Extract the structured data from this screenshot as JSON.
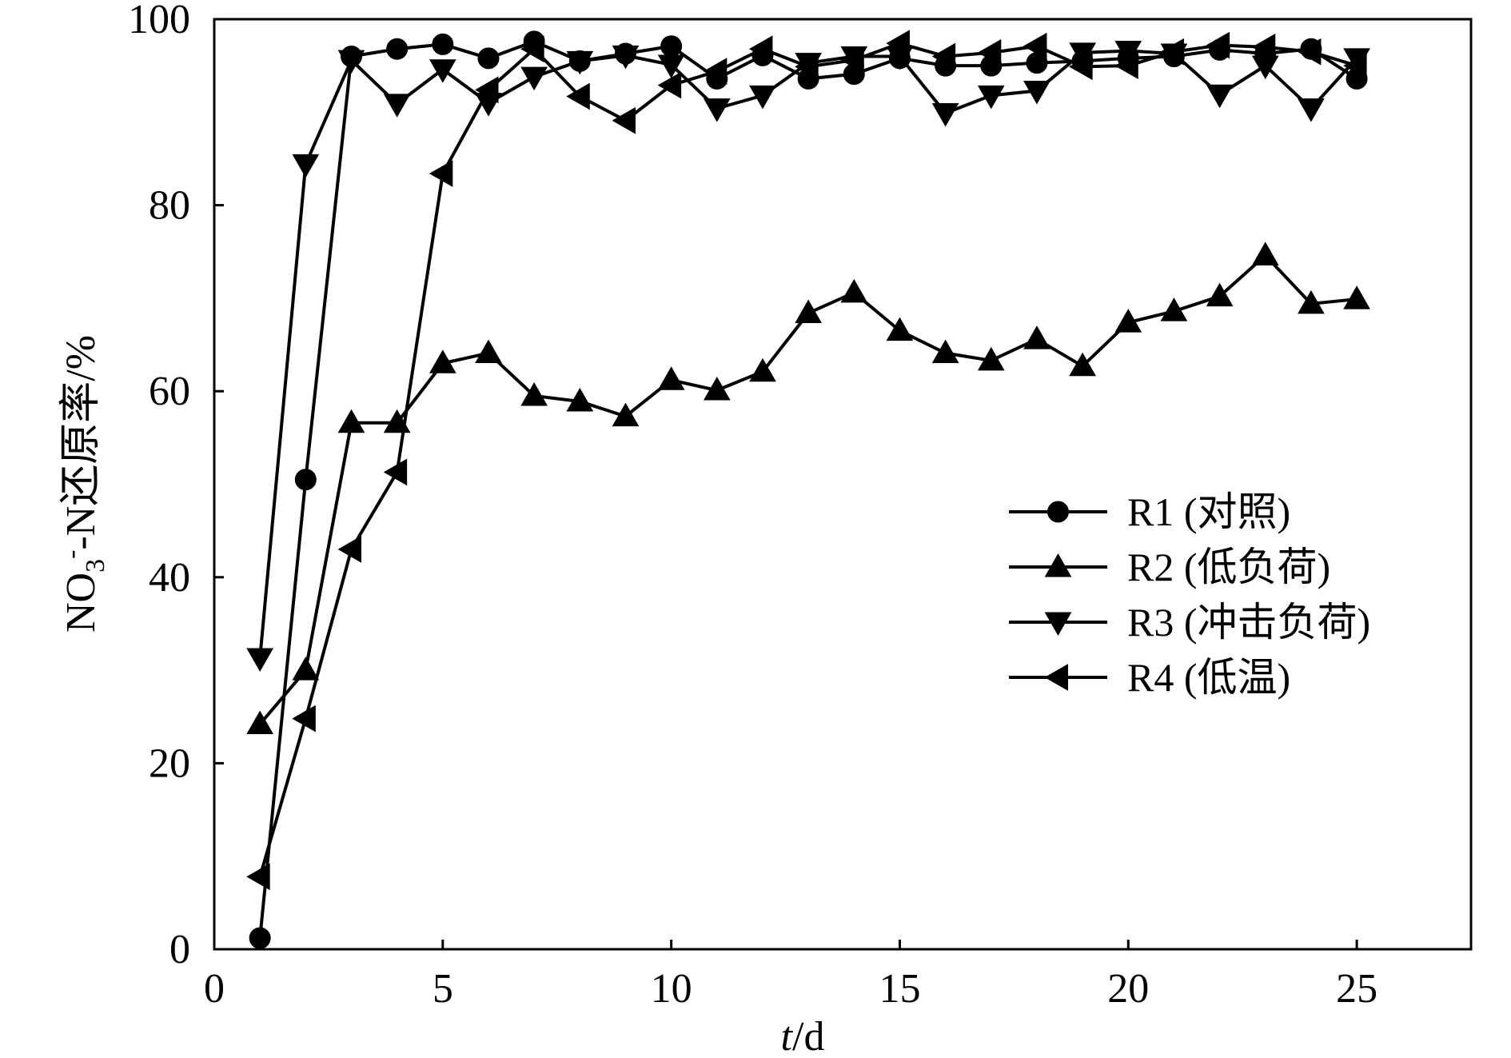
{
  "chart_data": {
    "type": "line",
    "xlabel_italic": "t",
    "xlabel_rest": "/d",
    "ylabel": {
      "prefix": "NO",
      "sub": "3",
      "sup": "-",
      "suffix": "-N还原率/%"
    },
    "xlim": [
      0,
      27.5
    ],
    "ylim": [
      0,
      100
    ],
    "x_ticks": [
      0,
      5,
      10,
      15,
      20,
      25
    ],
    "y_ticks": [
      0,
      20,
      40,
      60,
      80,
      100
    ],
    "grid": false,
    "legend_position": "center-right",
    "x": [
      1,
      2,
      3,
      4,
      5,
      6,
      7,
      8,
      9,
      10,
      11,
      12,
      13,
      14,
      15,
      16,
      17,
      18,
      19,
      20,
      21,
      22,
      23,
      24,
      25
    ],
    "series": [
      {
        "name": "R1 (对照)",
        "marker": "circle",
        "values": [
          1.2,
          50.5,
          96.0,
          96.8,
          97.3,
          95.8,
          97.6,
          95.5,
          96.3,
          97.1,
          93.6,
          96.1,
          93.6,
          94.1,
          95.8,
          95.0,
          95.0,
          95.3,
          95.5,
          95.8,
          96.0,
          96.7,
          96.3,
          96.8,
          93.6
        ]
      },
      {
        "name": "R2 (低负荷)",
        "marker": "triangle-up",
        "values": [
          24.2,
          30.0,
          56.6,
          56.6,
          63.0,
          64.1,
          59.5,
          58.9,
          57.3,
          61.2,
          60.1,
          62.1,
          68.4,
          70.6,
          66.5,
          64.1,
          63.3,
          65.6,
          62.7,
          67.4,
          68.6,
          70.2,
          74.6,
          69.4,
          69.9
        ]
      },
      {
        "name": "R3 (冲击负荷)",
        "marker": "triangle-down",
        "values": [
          31.3,
          84.4,
          95.6,
          90.9,
          94.6,
          91.0,
          93.8,
          95.5,
          96.1,
          95.1,
          90.4,
          91.8,
          95.3,
          96.0,
          96.0,
          89.9,
          91.8,
          92.3,
          96.4,
          96.6,
          96.3,
          91.9,
          95.0,
          90.4,
          95.8
        ]
      },
      {
        "name": "R4 (低温)",
        "marker": "triangle-left",
        "values": [
          7.8,
          24.8,
          43.0,
          51.3,
          83.4,
          92.4,
          96.8,
          91.7,
          89.1,
          92.9,
          94.4,
          96.8,
          94.9,
          95.6,
          97.4,
          96.0,
          96.4,
          97.1,
          94.9,
          95.0,
          96.5,
          97.2,
          97.0,
          96.5,
          95.0
        ]
      }
    ]
  }
}
